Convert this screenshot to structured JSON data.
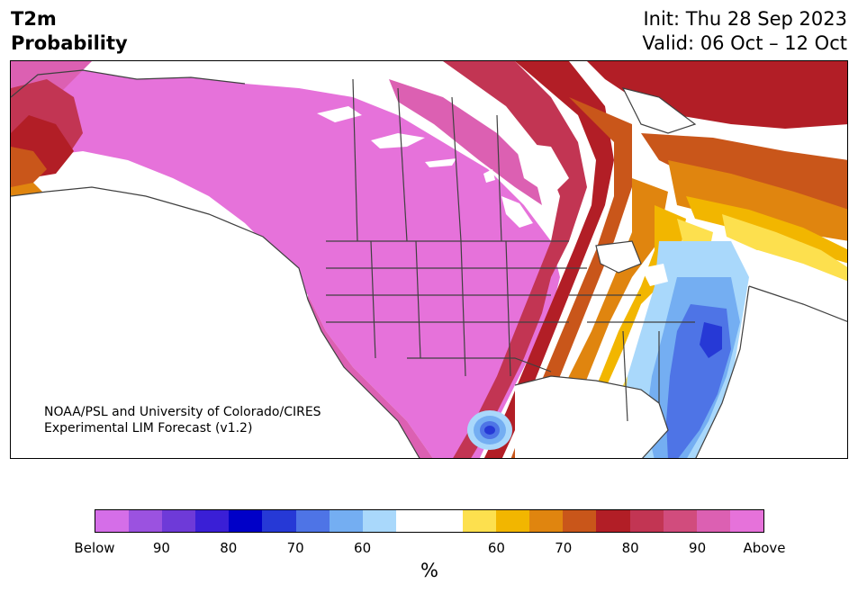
{
  "header": {
    "title_line1": "T2m",
    "title_line2": "Probability",
    "init": "Init: Thu 28 Sep 2023",
    "valid": "Valid: 06 Oct – 12 Oct"
  },
  "credit": {
    "line1": "NOAA/PSL and University of Colorado/CIRES",
    "line2": "Experimental LIM Forecast (v1.2)"
  },
  "colorbar": {
    "colors": [
      "#d56ee8",
      "#9b52e0",
      "#6e3ad8",
      "#3a1fd6",
      "#0000c8",
      "#2639d6",
      "#4e74e6",
      "#74aef2",
      "#a9d8fb",
      "#ffffff",
      "#ffffff",
      "#fde04e",
      "#f2b600",
      "#e0850f",
      "#c9561a",
      "#b21e26",
      "#c23553",
      "#d14c7d",
      "#dc60b2",
      "#e672da"
    ],
    "tick_labels": [
      "Below",
      "90",
      "80",
      "70",
      "60",
      "60",
      "70",
      "80",
      "90",
      "Above"
    ],
    "unit": "%"
  },
  "map_legend": {
    "above_colors": [
      "#e672da",
      "#dc60b2",
      "#c23553",
      "#b21e26",
      "#c9561a",
      "#e0850f",
      "#f2b600",
      "#fde04e"
    ],
    "below_colors": [
      "#a9d8fb",
      "#74aef2",
      "#4e74e6",
      "#2639d6"
    ]
  }
}
